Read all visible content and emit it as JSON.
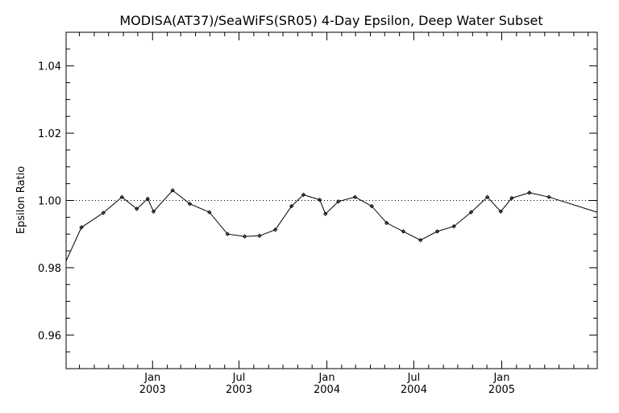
{
  "chart_data": {
    "type": "line",
    "title": "MODISA(AT37)/SeaWiFS(SR05) 4-Day Epsilon, Deep Water Subset",
    "xlabel": "",
    "ylabel": "Epsilon Ratio",
    "x_range": [
      "2002-07-04",
      "2005-07-20"
    ],
    "ylim": [
      0.95,
      1.05
    ],
    "y_ticks": [
      {
        "value": 0.96,
        "label": "0.96"
      },
      {
        "value": 0.98,
        "label": "0.98"
      },
      {
        "value": 1.0,
        "label": "1.00"
      },
      {
        "value": 1.02,
        "label": "1.02"
      },
      {
        "value": 1.04,
        "label": "1.04"
      }
    ],
    "x_ticks": [
      {
        "date": "2003-01-01",
        "month": "Jan",
        "year": "2003"
      },
      {
        "date": "2003-07-01",
        "month": "Jul",
        "year": "2003"
      },
      {
        "date": "2004-01-01",
        "month": "Jan",
        "year": "2004"
      },
      {
        "date": "2004-07-01",
        "month": "Jul",
        "year": "2004"
      },
      {
        "date": "2005-01-01",
        "month": "Jan",
        "year": "2005"
      }
    ],
    "reference_line": {
      "y": 1.0,
      "style": "dotted"
    },
    "grid": false,
    "series": [
      {
        "x": [
          "2002-07-04",
          "2002-08-05",
          "2002-09-20",
          "2002-10-29",
          "2002-11-29",
          "2002-12-22",
          "2003-01-03",
          "2003-02-12",
          "2003-03-20",
          "2003-04-30",
          "2003-06-07",
          "2003-07-13",
          "2003-08-13",
          "2003-09-15",
          "2003-10-19",
          "2003-11-13",
          "2003-12-17",
          "2003-12-29",
          "2004-01-25",
          "2004-02-29",
          "2004-04-04",
          "2004-05-05",
          "2004-06-09",
          "2004-07-15",
          "2004-08-19",
          "2004-09-23",
          "2004-10-29",
          "2004-12-02",
          "2004-12-30",
          "2005-01-22",
          "2005-02-28",
          "2005-04-10",
          "2005-07-20"
        ],
        "values": [
          0.982,
          0.992,
          0.9963,
          1.001,
          0.9975,
          1.0005,
          0.9967,
          1.003,
          0.999,
          0.9965,
          0.99,
          0.9893,
          0.9895,
          0.9913,
          0.9983,
          1.0017,
          1.0002,
          0.996,
          0.9997,
          1.001,
          0.9983,
          0.9933,
          0.9908,
          0.9882,
          0.9908,
          0.9923,
          0.9965,
          1.001,
          0.9967,
          1.0007,
          1.0023,
          1.001,
          0.9965
        ]
      }
    ]
  }
}
